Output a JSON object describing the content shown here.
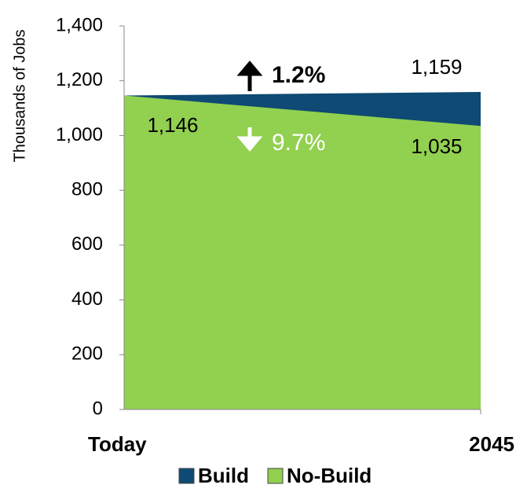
{
  "chart_data": {
    "type": "area",
    "y_label": "Thousands of Jobs",
    "categories": [
      "Today",
      "2045"
    ],
    "series": [
      {
        "name": "Build",
        "color": "#0e4a73",
        "values": [
          1146,
          1159
        ],
        "value_labels": [
          null,
          "1,159"
        ]
      },
      {
        "name": "No-Build",
        "color": "#92d050",
        "values": [
          1146,
          1035
        ],
        "value_labels": [
          "1,146",
          "1,035"
        ]
      }
    ],
    "annotations": [
      {
        "text": "1.2%",
        "color": "#000000"
      },
      {
        "text": "9.7%",
        "color": "#ffffff"
      }
    ],
    "ylim": [
      0,
      1400
    ],
    "yticks": [
      0,
      200,
      400,
      600,
      800,
      {
        "value": 1000,
        "label": "1,000"
      },
      {
        "value": 1200,
        "label": "1,200"
      },
      {
        "value": 1400,
        "label": "1,400"
      }
    ],
    "legend": "bottom"
  }
}
